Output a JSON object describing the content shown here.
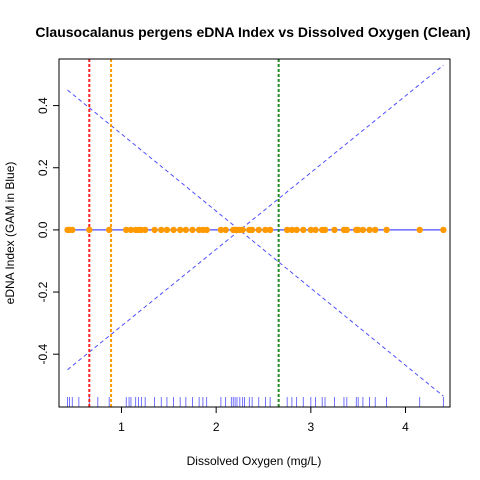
{
  "chart_data": {
    "type": "scatter",
    "title": "Clausocalanus pergens eDNA Index vs Dissolved Oxygen (Clean)",
    "xlabel": "Dissolved Oxygen (mg/L)",
    "ylabel": "eDNA Index (GAM in Blue)",
    "xlim": [
      0.34,
      4.47
    ],
    "ylim": [
      -0.57,
      0.55
    ],
    "x_ticks": [
      1,
      2,
      3,
      4
    ],
    "x_tick_labels": [
      "1",
      "2",
      "3",
      "4"
    ],
    "y_ticks": [
      -0.4,
      -0.2,
      0.0,
      0.2,
      0.4
    ],
    "y_tick_labels": [
      "-0.4",
      "-0.2",
      "0.0",
      "0.2",
      "0.4"
    ],
    "grid": false,
    "points": {
      "color": "#FF9900",
      "x": [
        0.43,
        0.45,
        0.48,
        0.66,
        0.87,
        1.05,
        1.1,
        1.15,
        1.18,
        1.21,
        1.25,
        1.35,
        1.42,
        1.48,
        1.55,
        1.62,
        1.68,
        1.75,
        1.82,
        1.86,
        1.9,
        2.05,
        2.1,
        2.18,
        2.2,
        2.22,
        2.25,
        2.28,
        2.35,
        2.38,
        2.45,
        2.52,
        2.57,
        2.75,
        2.8,
        2.85,
        2.92,
        3.0,
        3.05,
        3.12,
        3.15,
        3.25,
        3.35,
        3.38,
        3.48,
        3.5,
        3.55,
        3.62,
        3.68,
        3.8,
        4.15,
        4.4
      ],
      "y": [
        0.0,
        0.0,
        0.0,
        0.0,
        0.0,
        0.0,
        0.0,
        0.0,
        0.0,
        0.0,
        0.0,
        0.0,
        0.0,
        0.0,
        0.0,
        0.0,
        0.0,
        0.0,
        0.0,
        0.0,
        0.0,
        0.0,
        0.0,
        0.0,
        0.0,
        0.0,
        0.0,
        0.0,
        0.0,
        0.0,
        0.0,
        0.0,
        0.0,
        0.0,
        0.0,
        0.0,
        0.0,
        0.0,
        0.0,
        0.0,
        0.0,
        0.0,
        0.0,
        0.0,
        0.0,
        0.0,
        0.0,
        0.0,
        0.0,
        0.0,
        0.0,
        0.0
      ]
    },
    "gam_fit": {
      "color": "#4B4BFF",
      "x": [
        0.43,
        4.4
      ],
      "y": [
        0.0,
        0.0
      ]
    },
    "confidence_band": {
      "color": "#5050FF",
      "upper": {
        "x": [
          0.43,
          4.4
        ],
        "y": [
          0.45,
          -0.535
        ]
      },
      "lower": {
        "x": [
          0.43,
          4.4
        ],
        "y": [
          -0.45,
          0.53
        ]
      }
    },
    "rug": {
      "color": "#5050FF",
      "x": [
        0.43,
        0.45,
        0.48,
        0.55,
        0.66,
        0.75,
        0.87,
        1.05,
        1.08,
        1.1,
        1.15,
        1.18,
        1.21,
        1.25,
        1.35,
        1.42,
        1.48,
        1.55,
        1.62,
        1.68,
        1.75,
        1.82,
        1.86,
        1.9,
        2.05,
        2.1,
        2.16,
        2.18,
        2.2,
        2.22,
        2.25,
        2.28,
        2.3,
        2.35,
        2.38,
        2.45,
        2.52,
        2.57,
        2.75,
        2.8,
        2.85,
        2.92,
        3.0,
        3.05,
        3.12,
        3.15,
        3.25,
        3.35,
        3.38,
        3.48,
        3.5,
        3.55,
        3.62,
        3.68,
        3.8,
        4.15,
        4.4
      ]
    },
    "vertical_lines": [
      {
        "x": 0.66,
        "color": "#FF2222"
      },
      {
        "x": 0.89,
        "color": "#FF9900"
      },
      {
        "x": 2.66,
        "color": "#228B22"
      }
    ]
  }
}
